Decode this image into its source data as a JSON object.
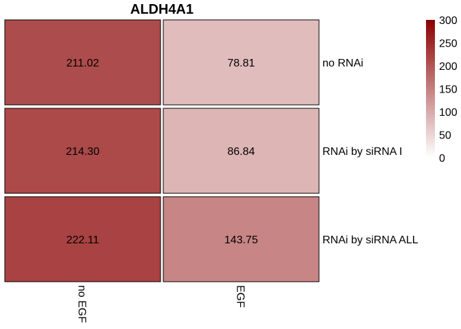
{
  "chart_data": {
    "type": "heatmap",
    "title": "ALDH4A1",
    "columns": [
      "no EGF",
      "EGF"
    ],
    "rows": [
      "no RNAi",
      "RNAi by siRNA I",
      "RNAi by siRNA ALL"
    ],
    "values": [
      [
        211.02,
        78.81
      ],
      [
        214.3,
        86.84
      ],
      [
        222.11,
        143.75
      ]
    ],
    "value_labels": [
      [
        "211.02",
        "78.81"
      ],
      [
        "214.30",
        "86.84"
      ],
      [
        "222.11",
        "143.75"
      ]
    ],
    "color_scale": {
      "min": 0,
      "max": 300,
      "low_color": "#ffffff",
      "high_color": "#8b0000",
      "ticks": [
        0,
        50,
        100,
        150,
        200,
        250,
        300
      ]
    },
    "legend_position": "top-right"
  }
}
